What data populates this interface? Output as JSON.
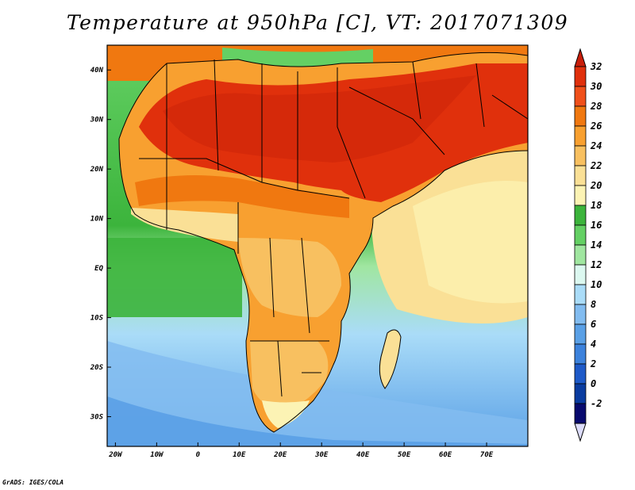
{
  "title": "Temperature at 950hPa [C], VT: 2017071309",
  "credit": "GrADS: IGES/COLA",
  "map": {
    "lon_range": [
      -22,
      80
    ],
    "lat_range": [
      -36,
      45
    ],
    "lon_ticks": [
      "20W",
      "10W",
      "0",
      "10E",
      "20E",
      "30E",
      "40E",
      "50E",
      "60E",
      "70E"
    ],
    "lat_ticks": [
      "40N",
      "30N",
      "20N",
      "10N",
      "EQ",
      "10S",
      "20S",
      "30S"
    ]
  },
  "colorbar": {
    "labels": [
      "32",
      "30",
      "28",
      "26",
      "24",
      "22",
      "20",
      "18",
      "16",
      "14",
      "12",
      "10",
      "8",
      "6",
      "4",
      "2",
      "0",
      "-2"
    ],
    "colors": [
      "#e0300c",
      "#f0501a",
      "#f07810",
      "#f8a030",
      "#f8c060",
      "#fae096",
      "#fcf3b4",
      "#3cb43c",
      "#64d064",
      "#a0e6a0",
      "#dcf8f0",
      "#aadcf8",
      "#82bcf0",
      "#5aa0e6",
      "#3c82dc",
      "#1e5ac8",
      "#0a3ca0",
      "#080a6e"
    ],
    "top_arrow_color": "#c81e0a",
    "bottom_arrow_color": "#dcdcfa"
  }
}
